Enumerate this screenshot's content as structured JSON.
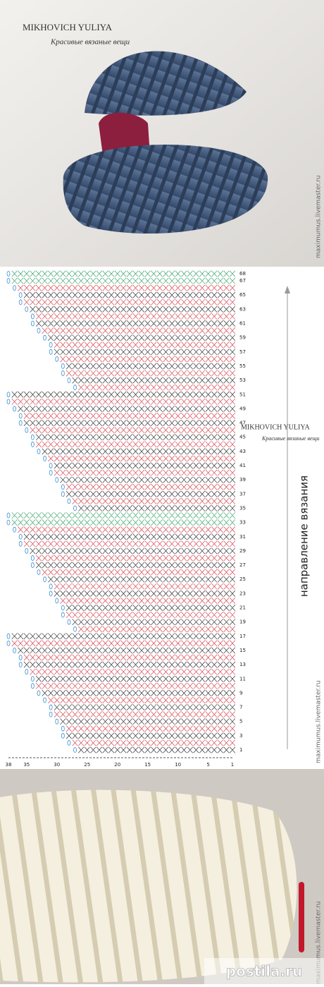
{
  "logo": {
    "name": "MIKHOVICH YULIYA",
    "tagline": "Красивые вязаные вещи"
  },
  "chart": {
    "row_numbers": [
      68,
      67,
      65,
      63,
      61,
      59,
      57,
      55,
      53,
      51,
      49,
      47,
      45,
      43,
      41,
      39,
      37,
      35,
      33,
      31,
      29,
      27,
      25,
      23,
      21,
      19,
      17,
      15,
      13,
      11,
      9,
      7,
      5,
      3,
      1
    ],
    "column_numbers": [
      38,
      35,
      30,
      25,
      20,
      15,
      10,
      5,
      1
    ],
    "direction_label": "направление вязания"
  },
  "site": "maximumus.livemaster.ru",
  "brand": "postila.ru"
}
